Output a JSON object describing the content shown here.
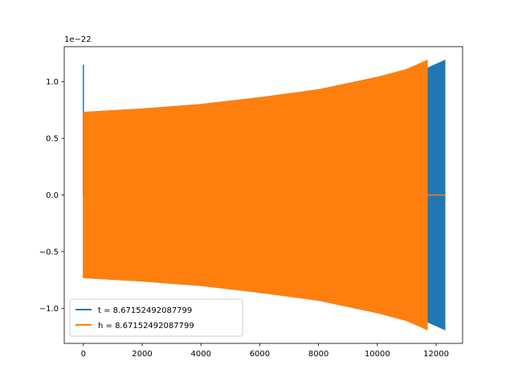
{
  "chart_data": {
    "type": "line",
    "title": "",
    "xlabel": "",
    "ylabel": "",
    "y_offset_label": "1e−22",
    "xlim": [
      -650,
      12900
    ],
    "ylim": [
      -1.31,
      1.31
    ],
    "x_ticks": [
      0,
      2000,
      4000,
      6000,
      8000,
      10000,
      12000
    ],
    "x_tick_labels": [
      "0",
      "2000",
      "4000",
      "6000",
      "8000",
      "10000",
      "12000"
    ],
    "y_ticks": [
      -1.0,
      -0.5,
      0.0,
      0.5,
      1.0
    ],
    "y_tick_labels": [
      "−1.0",
      "−0.5",
      "0.0",
      "0.5",
      "1.0"
    ],
    "grid": false,
    "legend_position": "lower-left",
    "series": [
      {
        "name": "t = 8.67152492087799",
        "color": "#1f77b4",
        "x_start": 0,
        "x_end": 12300,
        "envelope_x": [
          0,
          2000,
          4000,
          6000,
          8000,
          10000,
          11700,
          12300
        ],
        "envelope_amp": [
          0.73,
          0.76,
          0.8,
          0.86,
          0.93,
          1.04,
          1.12,
          1.19
        ],
        "spike": {
          "x": 0,
          "y": 1.15
        },
        "zero_tail": {
          "x_start": 12300,
          "x_end": 12300
        }
      },
      {
        "name": "h = 8.67152492087799",
        "color": "#ff7f0e",
        "x_start": 0,
        "x_end": 11700,
        "envelope_x": [
          0,
          2000,
          4000,
          6000,
          8000,
          10000,
          11000,
          11700
        ],
        "envelope_amp": [
          0.73,
          0.76,
          0.8,
          0.86,
          0.93,
          1.04,
          1.11,
          1.19
        ],
        "zero_tail": {
          "x_start": 11700,
          "x_end": 12300
        }
      }
    ]
  }
}
